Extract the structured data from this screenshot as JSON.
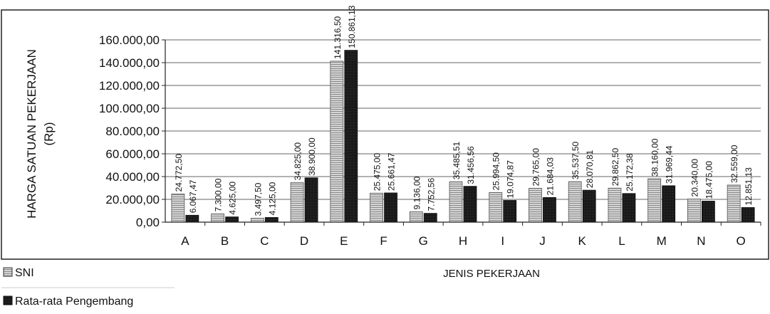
{
  "chart_data": {
    "type": "bar",
    "title": "",
    "ylabel": "HARGA SATUAN PEKERJAAN (Rp)",
    "ylabel_line1": "HARGA SATUAN PEKERJAAN",
    "ylabel_line2": "(Rp)",
    "xlabel": "JENIS PEKERJAAN",
    "ylim": [
      0,
      160000
    ],
    "yticks": [
      0,
      20000,
      40000,
      60000,
      80000,
      100000,
      120000,
      140000,
      160000
    ],
    "ytick_labels": [
      "0,00",
      "20.000,00",
      "40.000,00",
      "60.000,00",
      "80.000,00",
      "100.000,00",
      "120.000,00",
      "140.000,00",
      "160.000,00"
    ],
    "grid": true,
    "legend_position": "bottom-left",
    "categories": [
      "A",
      "B",
      "C",
      "D",
      "E",
      "F",
      "G",
      "H",
      "I",
      "J",
      "K",
      "L",
      "M",
      "N",
      "O"
    ],
    "series": [
      {
        "name": "SNI",
        "color": "#b8b8b8",
        "values": [
          24772.5,
          7300,
          3497.5,
          34825,
          141316.5,
          25475,
          9136,
          35485.51,
          25994.5,
          29765,
          35537.5,
          29862.5,
          38160,
          20340,
          32559
        ],
        "labels": [
          "24.772,50",
          "7.300,00",
          "3.497,50",
          "34.825,00",
          "141.316,50",
          "25.475,00",
          "9.136,00",
          "35.485,51",
          "25.994,50",
          "29.765,00",
          "35.537,50",
          "29.862,50",
          "38.160,00",
          "20.340,00",
          "32.559,00"
        ]
      },
      {
        "name": "Rata-rata Pengembang",
        "color": "#1a1a1a",
        "values": [
          6067.47,
          4625,
          4125,
          38900,
          150861.13,
          25661.47,
          7752.56,
          31456.56,
          19074.87,
          21684.03,
          28070.81,
          25172.38,
          31969.44,
          18475,
          12851.13
        ],
        "labels": [
          "6.067,47",
          "4.625,00",
          "4.125,00",
          "38.900,00",
          "150.861,13",
          "25.661,47",
          "7.752,56",
          "31.456,56",
          "19.074,87",
          "21.684,03",
          "28.070,81",
          "25.172,38",
          "31.969,44",
          "18.475,00",
          "12.851,13"
        ]
      }
    ]
  }
}
